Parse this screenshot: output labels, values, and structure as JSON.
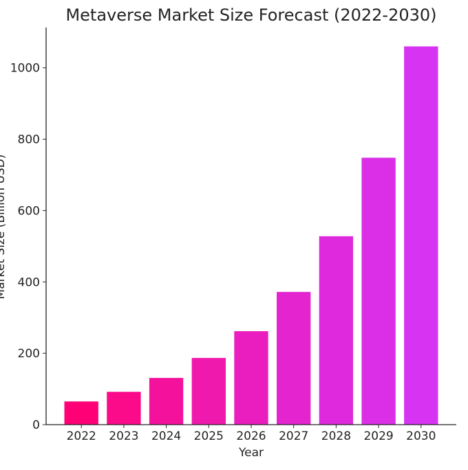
{
  "chart_data": {
    "type": "bar",
    "title": "Metaverse Market Size Forecast (2022-2030)",
    "xlabel": "Year",
    "ylabel": "Market Size (Billion USD)",
    "categories": [
      "2022",
      "2023",
      "2024",
      "2025",
      "2026",
      "2027",
      "2028",
      "2029",
      "2030"
    ],
    "values": [
      65,
      92,
      131,
      187,
      262,
      372,
      528,
      748,
      1060
    ],
    "colors": [
      "#ff0077",
      "#fb0a8a",
      "#f4129d",
      "#ef19ad",
      "#ea1ebf",
      "#e324cf",
      "#de2adc",
      "#da2fe6",
      "#d633f2"
    ],
    "ylim": [
      0,
      1113
    ],
    "yticks": [
      0,
      200,
      400,
      600,
      800,
      1000
    ],
    "grid": false
  }
}
